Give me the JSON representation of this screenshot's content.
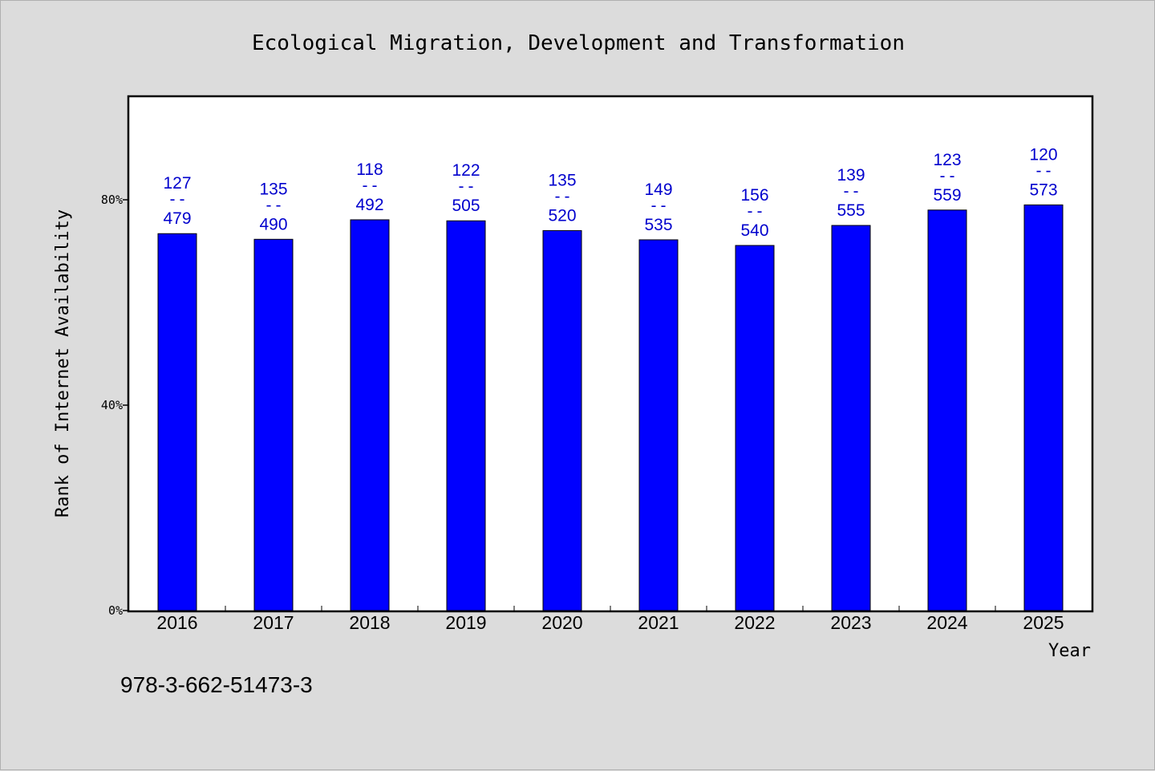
{
  "chart_data": {
    "type": "bar",
    "title": "Ecological Migration, Development and Transformation",
    "xlabel": "Year",
    "ylabel": "Rank of Internet Availability",
    "footer_id": "978-3-662-51473-3",
    "ylim": [
      0,
      100
    ],
    "yticks": [
      {
        "value": 0,
        "label": "0%"
      },
      {
        "value": 40,
        "label": "40%"
      },
      {
        "value": 80,
        "label": "80%"
      }
    ],
    "categories": [
      "2016",
      "2017",
      "2018",
      "2019",
      "2020",
      "2021",
      "2022",
      "2023",
      "2024",
      "2025"
    ],
    "values": [
      73.4,
      72.3,
      76.1,
      75.9,
      74.0,
      72.2,
      71.1,
      75.0,
      78.0,
      79.0
    ],
    "rank_labels": [
      {
        "top": "127",
        "sep": "--",
        "bottom": "479"
      },
      {
        "top": "135",
        "sep": "--",
        "bottom": "490"
      },
      {
        "top": "118",
        "sep": "--",
        "bottom": "492"
      },
      {
        "top": "122",
        "sep": "--",
        "bottom": "505"
      },
      {
        "top": "135",
        "sep": "--",
        "bottom": "520"
      },
      {
        "top": "149",
        "sep": "--",
        "bottom": "535"
      },
      {
        "top": "156",
        "sep": "--",
        "bottom": "540"
      },
      {
        "top": "139",
        "sep": "--",
        "bottom": "555"
      },
      {
        "top": "123",
        "sep": "--",
        "bottom": "559"
      },
      {
        "top": "120",
        "sep": "--",
        "bottom": "573"
      }
    ],
    "bar_color": "#0000ff",
    "label_color": "#0000cd",
    "plot_background": "#ffffff",
    "page_background": "#dcdcdc",
    "grid": false,
    "legend": "none"
  }
}
